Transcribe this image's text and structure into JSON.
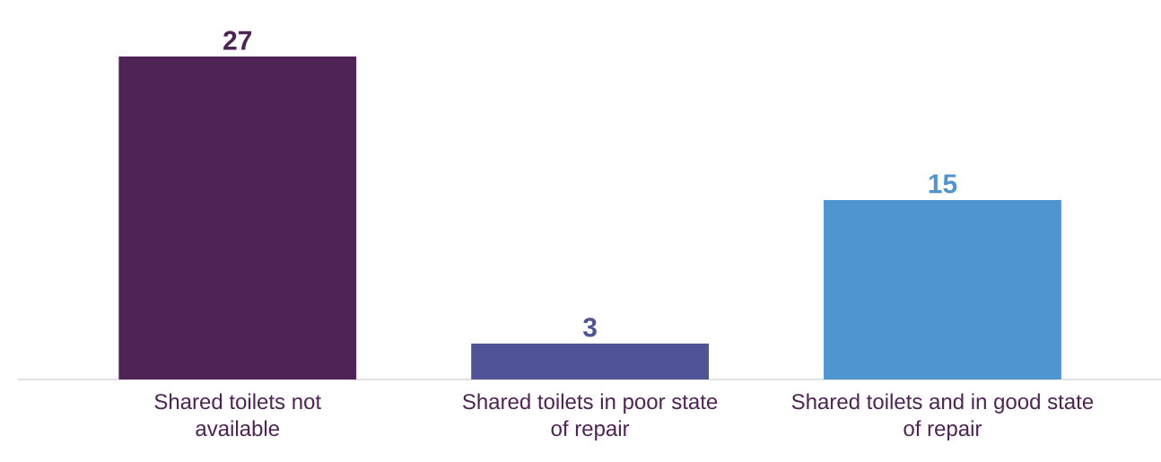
{
  "chart_data": {
    "type": "bar",
    "categories": [
      "Shared toilets not available",
      "Shared toilets in poor state of repair",
      "Shared toilets and in good state of repair"
    ],
    "values": [
      27,
      3,
      15
    ],
    "colors": [
      "#4f2355",
      "#4e5496",
      "#4f95d0"
    ],
    "data_labels": true
  }
}
